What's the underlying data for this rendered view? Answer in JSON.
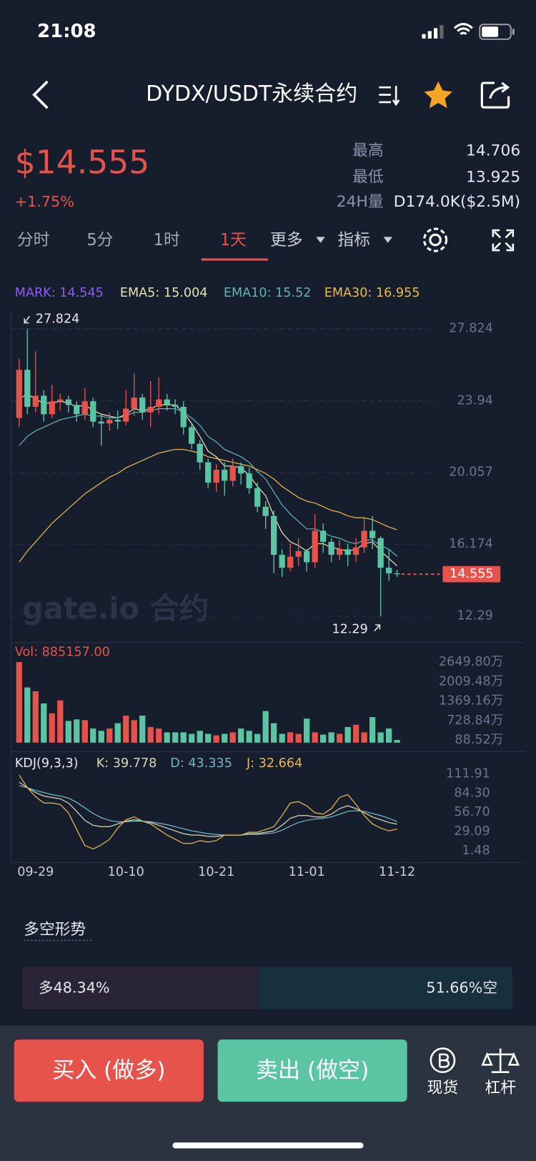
{
  "status_bar": {
    "time": "21:08"
  },
  "header": {
    "title": "DYDX/USDT永续合约"
  },
  "ticker": {
    "price": "$14.555",
    "change": "+1.75%",
    "stats": [
      {
        "label": "最高",
        "value": "14.706"
      },
      {
        "label": "最低",
        "value": "13.925"
      },
      {
        "label": "24H量",
        "value": "D174.0K($2.5M)"
      }
    ]
  },
  "tabs": [
    "分时",
    "5分",
    "1时",
    "1天",
    "更多",
    "指标"
  ],
  "watermark": "gate.io 合约",
  "chart_data": [
    {
      "type": "candlestick",
      "mark_label": "MARK: 14.545",
      "mark_color": "#8b5cf6",
      "up_color": "#e5534b",
      "down_color": "#5bc4a3",
      "categories": [
        null,
        null,
        "09-29",
        null,
        null,
        null,
        null,
        null,
        null,
        null,
        null,
        null,
        null,
        "10-10",
        null,
        null,
        null,
        null,
        null,
        null,
        null,
        null,
        null,
        null,
        "10-21",
        null,
        null,
        null,
        null,
        null,
        null,
        null,
        null,
        null,
        null,
        "11-01",
        null,
        null,
        null,
        null,
        null,
        null,
        null,
        null,
        null,
        null,
        "11-12"
      ],
      "open": [
        23.0,
        25.6,
        23.6,
        24.2,
        23.2,
        23.9,
        24.0,
        23.7,
        23.2,
        23.9,
        22.8,
        22.7,
        22.9,
        22.8,
        23.5,
        24.1,
        23.3,
        23.6,
        24.0,
        23.7,
        23.6,
        22.5,
        21.6,
        20.6,
        19.5,
        20.2,
        19.6,
        20.4,
        20.0,
        19.2,
        18.2,
        17.7,
        15.6,
        14.9,
        15.5,
        15.8,
        15.2,
        16.9,
        16.3,
        15.6,
        15.9,
        15.6,
        16.0,
        16.9,
        16.5,
        14.9,
        14.6
      ],
      "high": [
        26.2,
        27.824,
        26.6,
        24.5,
        24.8,
        24.3,
        24.2,
        23.9,
        24.6,
        24.1,
        23.2,
        23.3,
        23.4,
        24.5,
        25.4,
        24.3,
        25.0,
        25.2,
        24.3,
        24.0,
        23.9,
        22.7,
        21.8,
        20.8,
        20.5,
        20.6,
        20.8,
        20.6,
        20.3,
        19.5,
        18.5,
        18.0,
        15.9,
        16.2,
        16.5,
        15.9,
        17.8,
        17.3,
        16.5,
        16.4,
        16.2,
        16.5,
        17.6,
        17.7,
        16.6,
        15.9,
        14.8
      ],
      "low": [
        22.5,
        23.2,
        23.3,
        22.8,
        23.0,
        23.4,
        23.3,
        22.8,
        22.9,
        22.5,
        21.5,
        22.3,
        22.4,
        22.6,
        23.1,
        22.9,
        22.5,
        23.2,
        23.4,
        23.2,
        22.1,
        21.3,
        20.2,
        19.2,
        19.0,
        18.8,
        19.3,
        19.4,
        18.9,
        17.9,
        17.0,
        14.6,
        14.4,
        14.7,
        15.0,
        14.7,
        14.9,
        15.7,
        15.2,
        15.3,
        15.0,
        15.2,
        15.7,
        15.9,
        12.29,
        14.2,
        14.4
      ],
      "close": [
        25.6,
        23.6,
        24.2,
        23.2,
        23.9,
        24.0,
        23.7,
        23.2,
        23.9,
        22.8,
        22.7,
        22.9,
        22.8,
        23.5,
        24.1,
        23.3,
        23.6,
        24.0,
        23.7,
        23.6,
        22.5,
        21.6,
        20.6,
        19.5,
        20.2,
        19.6,
        20.4,
        20.0,
        19.2,
        18.2,
        17.7,
        15.6,
        14.9,
        15.5,
        15.8,
        15.2,
        16.9,
        16.3,
        15.6,
        15.9,
        15.6,
        16.0,
        16.9,
        16.5,
        14.9,
        14.6,
        14.555
      ],
      "series": [
        {
          "name": "EMA5: 15.004",
          "color": "#e6e0b0",
          "values": [
            24.0,
            24.3,
            24.0,
            23.8,
            23.8,
            23.9,
            23.8,
            23.6,
            23.7,
            23.4,
            23.2,
            23.1,
            23.0,
            23.2,
            23.5,
            23.4,
            23.5,
            23.7,
            23.7,
            23.7,
            23.3,
            22.7,
            22.0,
            21.2,
            20.9,
            20.4,
            20.4,
            20.3,
            19.9,
            19.3,
            18.8,
            17.7,
            16.8,
            16.3,
            16.1,
            15.8,
            16.2,
            16.2,
            16.0,
            15.9,
            15.8,
            15.9,
            16.2,
            16.3,
            15.8,
            15.4,
            15.004
          ]
        },
        {
          "name": "EMA10: 15.52",
          "color": "#5fb3b3",
          "values": [
            21.5,
            22.0,
            22.3,
            22.5,
            22.7,
            22.9,
            23.0,
            23.1,
            23.2,
            23.1,
            23.1,
            23.0,
            23.0,
            23.1,
            23.3,
            23.3,
            23.4,
            23.5,
            23.5,
            23.5,
            23.3,
            23.0,
            22.6,
            22.0,
            21.7,
            21.3,
            21.1,
            20.9,
            20.6,
            20.1,
            19.7,
            19.0,
            18.3,
            17.8,
            17.4,
            17.0,
            17.0,
            16.8,
            16.6,
            16.5,
            16.3,
            16.2,
            16.4,
            16.4,
            16.1,
            15.9,
            15.52
          ]
        },
        {
          "name": "EMA30: 16.955",
          "color": "#e9b949",
          "values": [
            15.2,
            15.8,
            16.3,
            16.8,
            17.3,
            17.7,
            18.1,
            18.5,
            18.9,
            19.2,
            19.5,
            19.8,
            20.0,
            20.3,
            20.5,
            20.7,
            20.9,
            21.1,
            21.2,
            21.3,
            21.3,
            21.2,
            21.1,
            20.9,
            20.8,
            20.7,
            20.6,
            20.5,
            20.4,
            20.2,
            20.0,
            19.7,
            19.3,
            19.0,
            18.7,
            18.5,
            18.4,
            18.2,
            18.0,
            17.9,
            17.7,
            17.6,
            17.6,
            17.5,
            17.3,
            17.1,
            16.955
          ]
        }
      ],
      "ylim": [
        11.17,
        28.78
      ],
      "yticks": [
        27.824,
        23.94,
        20.057,
        16.174,
        12.29
      ],
      "grid": true,
      "max_label": "27.824",
      "min_label": "12.29"
    },
    {
      "type": "bar",
      "title": "Vol: 885157.00",
      "values": [
        2649.8,
        1814,
        1689,
        1289,
        964,
        1389,
        714,
        764,
        739,
        464,
        389,
        464,
        639,
        889,
        739,
        889,
        514,
        464,
        339,
        339,
        339,
        289,
        389,
        289,
        239,
        289,
        339,
        464,
        389,
        289,
        1039,
        639,
        289,
        339,
        289,
        789,
        339,
        264,
        339,
        289,
        514,
        589,
        339,
        839,
        339,
        464,
        88.52
      ],
      "ylim": [
        0,
        3200
      ],
      "yticks": [
        {
          "value": 2649.8,
          "label": "2649.80万"
        },
        {
          "value": 2009.48,
          "label": "2009.48万"
        },
        {
          "value": 1369.16,
          "label": "1369.16万"
        },
        {
          "value": 728.84,
          "label": "728.84万"
        },
        {
          "value": 88.52,
          "label": "88.52万"
        }
      ]
    },
    {
      "type": "line",
      "title": "KDJ(9,3,3)",
      "series": [
        {
          "name": "K: 39.778",
          "color": "#d9d6b8",
          "values": [
            100,
            92,
            85,
            80,
            78,
            76,
            70,
            58,
            45,
            38,
            36,
            36,
            40,
            44,
            46,
            44,
            42,
            38,
            34,
            30,
            26,
            24,
            24,
            22,
            22,
            24,
            24,
            24,
            26,
            26,
            28,
            30,
            38,
            48,
            52,
            52,
            50,
            50,
            54,
            62,
            66,
            62,
            56,
            50,
            46,
            42,
            39.778
          ]
        },
        {
          "name": "D: 43.335",
          "color": "#6fb8c0",
          "values": [
            95,
            92,
            88,
            85,
            82,
            80,
            77,
            71,
            63,
            55,
            49,
            45,
            43,
            43,
            44,
            44,
            43,
            41,
            39,
            36,
            33,
            30,
            28,
            26,
            25,
            24,
            24,
            24,
            25,
            25,
            26,
            27,
            31,
            37,
            42,
            45,
            47,
            48,
            50,
            54,
            58,
            59,
            58,
            55,
            52,
            48,
            43.335
          ]
        },
        {
          "name": "J: 32.664",
          "color": "#e9b949",
          "values": [
            110,
            92,
            79,
            70,
            70,
            68,
            56,
            32,
            9,
            4,
            10,
            18,
            34,
            46,
            50,
            44,
            40,
            32,
            24,
            18,
            12,
            12,
            16,
            14,
            16,
            24,
            24,
            24,
            28,
            28,
            32,
            36,
            52,
            70,
            72,
            66,
            56,
            54,
            62,
            78,
            82,
            68,
            52,
            40,
            34,
            30,
            32.664
          ]
        }
      ],
      "ylim": [
        -15.5,
        138.5
      ],
      "yticks": [
        111.91,
        {
          "value": 84.3,
          "label": "84.30"
        },
        {
          "value": 56.7,
          "label": "56.70"
        },
        29.09,
        1.48
      ]
    }
  ],
  "sentiment": {
    "title": "多空形势",
    "long": 48.34,
    "long_label": "多48.34%",
    "short": 51.66,
    "short_label": "51.66%空"
  },
  "actions": {
    "buy": "买入 (做多)",
    "sell": "卖出 (做空)",
    "spot": "现货",
    "margin": "杠杆"
  }
}
